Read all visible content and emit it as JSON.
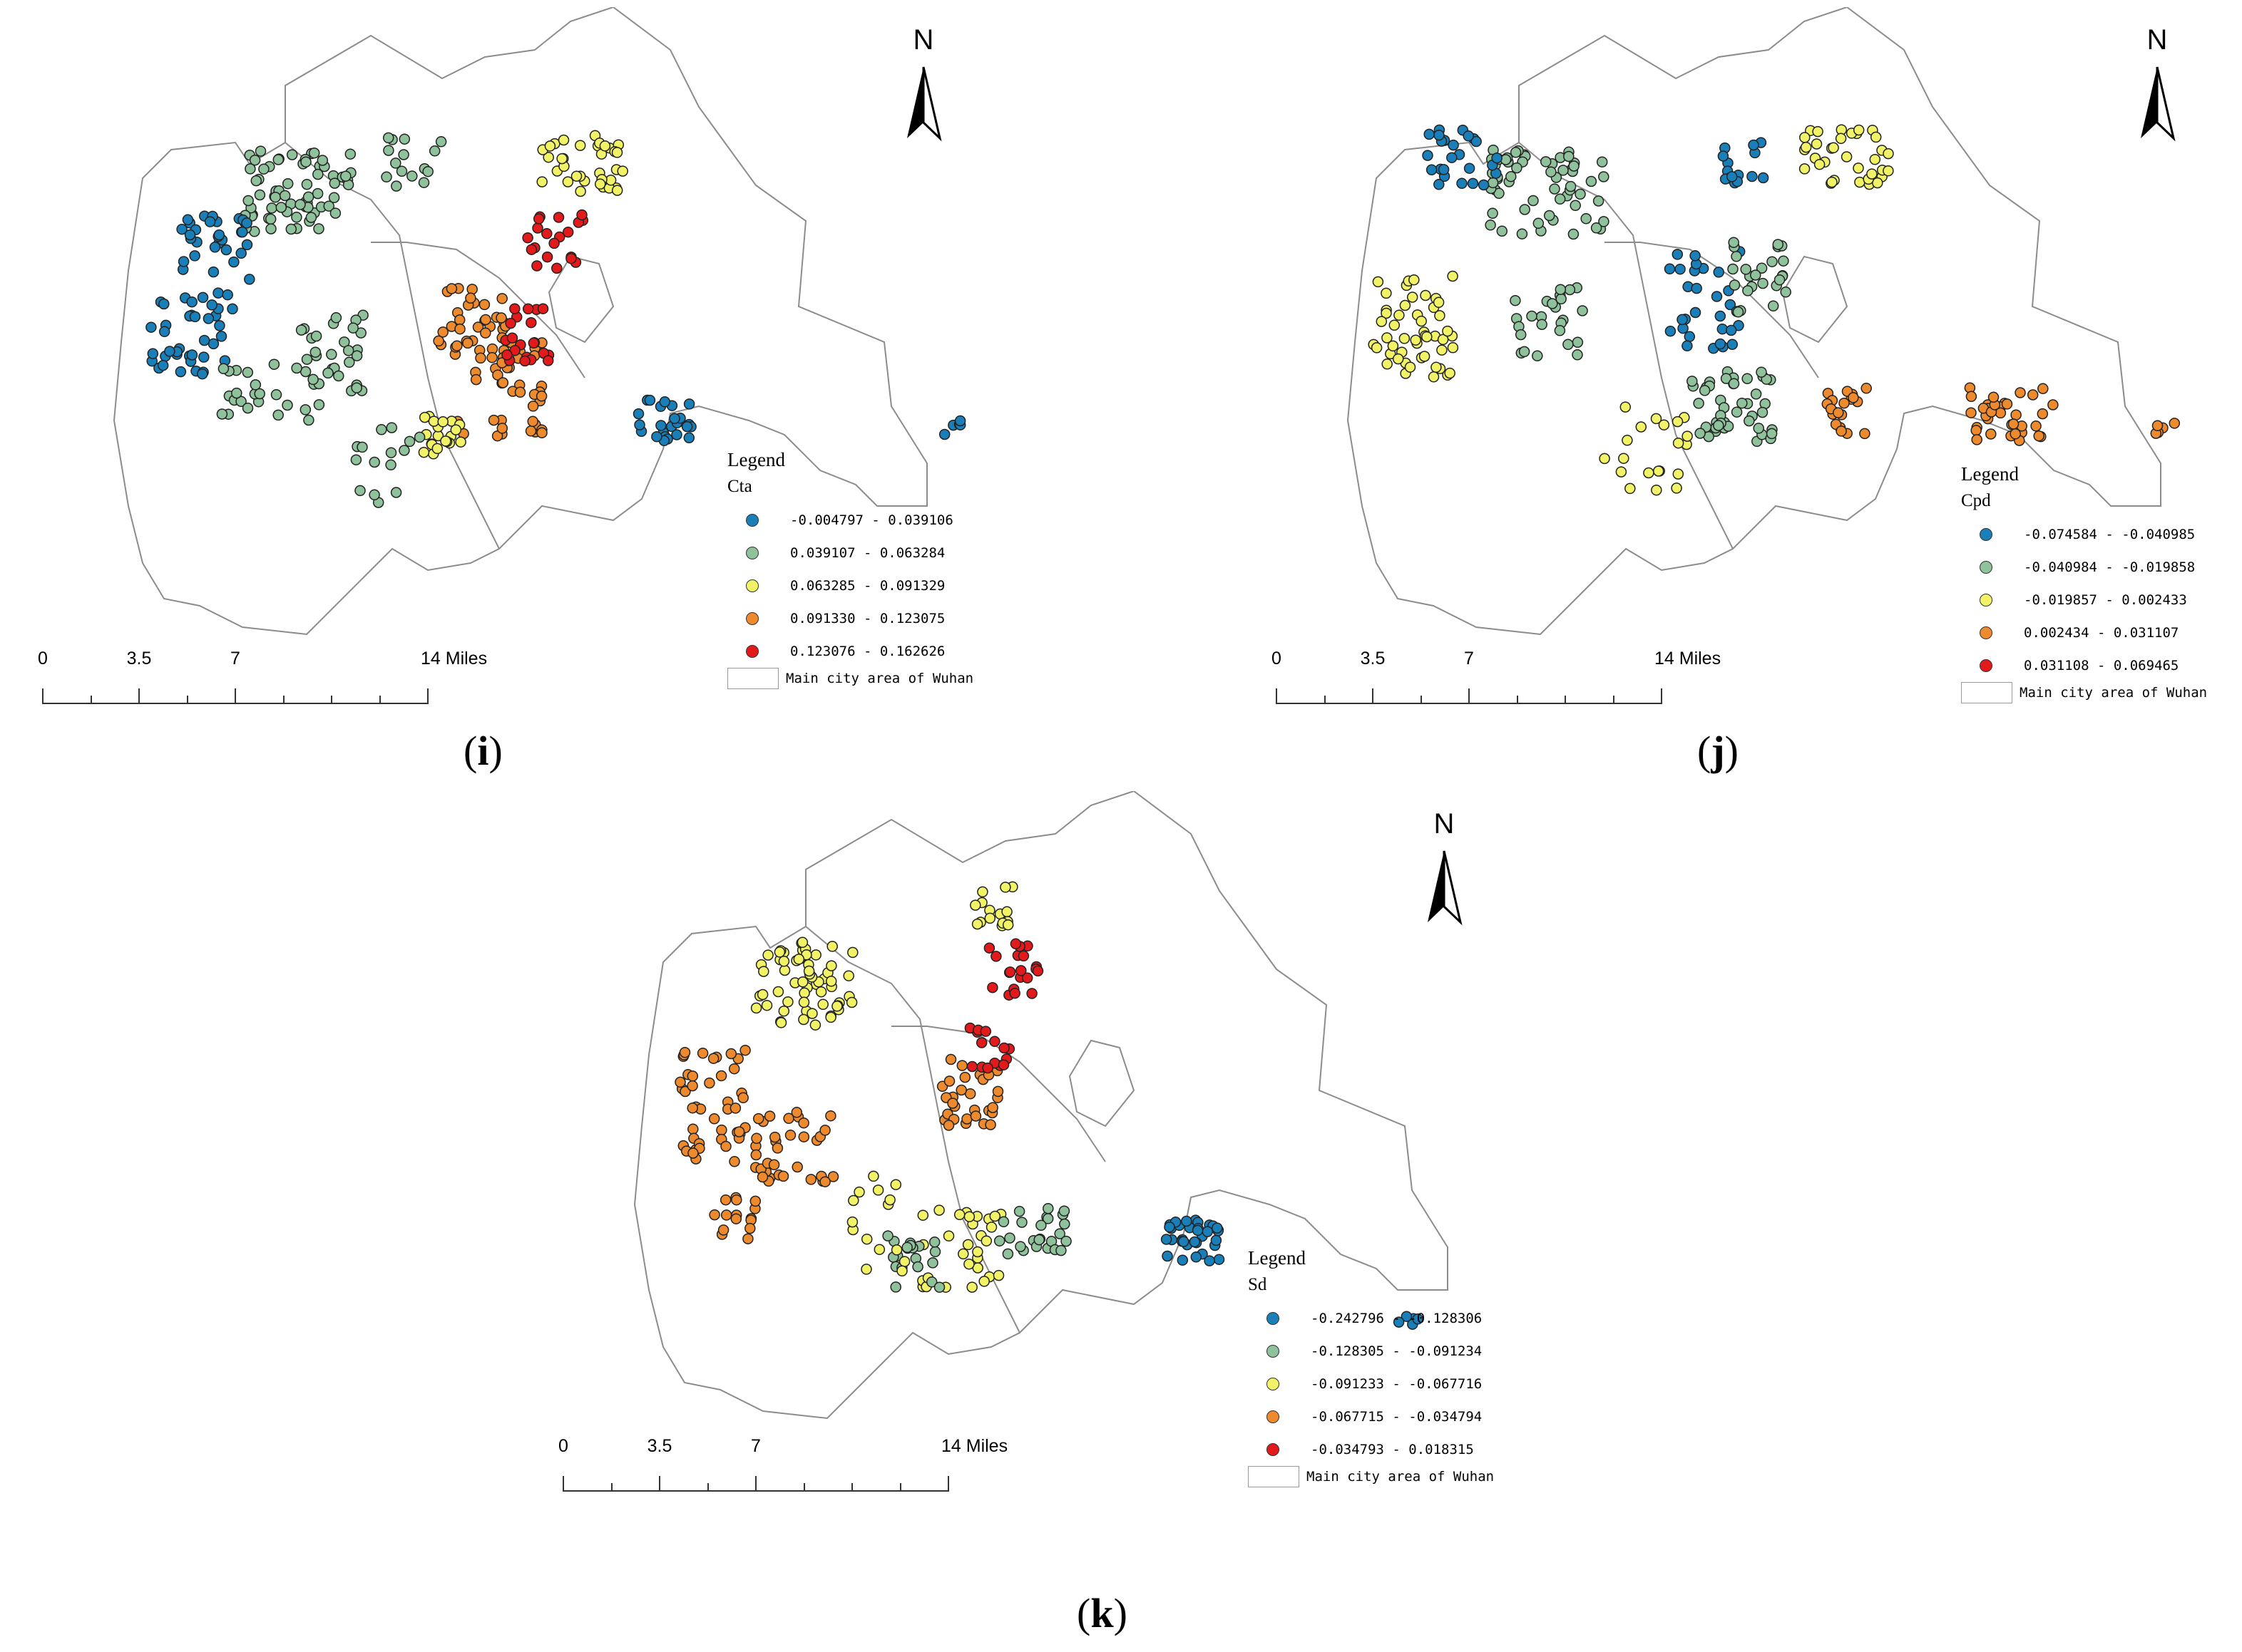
{
  "panels": [
    {
      "id": "i",
      "caption_letter": "i",
      "legend_title": "Legend",
      "field": "Cta",
      "classes": [
        {
          "label": "-0.004797 - 0.039106",
          "color": "#1a7fb8"
        },
        {
          "label": "0.039107 - 0.063284",
          "color": "#8fc19b"
        },
        {
          "label": "0.063285 - 0.091329",
          "color": "#f2f266"
        },
        {
          "label": "0.091330 - 0.123075",
          "color": "#ee8a2e"
        },
        {
          "label": "0.123076 - 0.162626",
          "color": "#e31a1c"
        }
      ],
      "area_label": "Main city area of Wuhan",
      "scale": {
        "labels": [
          "0",
          "3.5",
          "7",
          "14 Miles"
        ]
      },
      "north": "N"
    },
    {
      "id": "j",
      "caption_letter": "j",
      "legend_title": "Legend",
      "field": "Cpd",
      "classes": [
        {
          "label": "-0.074584 - -0.040985",
          "color": "#1a7fb8"
        },
        {
          "label": "-0.040984 - -0.019858",
          "color": "#8fc19b"
        },
        {
          "label": "-0.019857 - 0.002433",
          "color": "#f2f266"
        },
        {
          "label": "0.002434 - 0.031107",
          "color": "#ee8a2e"
        },
        {
          "label": "0.031108 - 0.069465",
          "color": "#e31a1c"
        }
      ],
      "area_label": "Main city area of Wuhan",
      "scale": {
        "labels": [
          "0",
          "3.5",
          "7",
          "14 Miles"
        ]
      },
      "north": "N"
    },
    {
      "id": "k",
      "caption_letter": "k",
      "legend_title": "Legend",
      "field": "Sd",
      "classes": [
        {
          "label": "-0.242796 - -0.128306",
          "color": "#1a7fb8"
        },
        {
          "label": "-0.128305 - -0.091234",
          "color": "#8fc19b"
        },
        {
          "label": "-0.091233 - -0.067716",
          "color": "#f2f266"
        },
        {
          "label": "-0.067715 - -0.034794",
          "color": "#ee8a2e"
        },
        {
          "label": "-0.034793 - 0.018315",
          "color": "#e31a1c"
        }
      ],
      "area_label": "Main city area of Wuhan",
      "scale": {
        "labels": [
          "0",
          "3.5",
          "7",
          "14 Miles"
        ]
      },
      "north": "N"
    }
  ]
}
